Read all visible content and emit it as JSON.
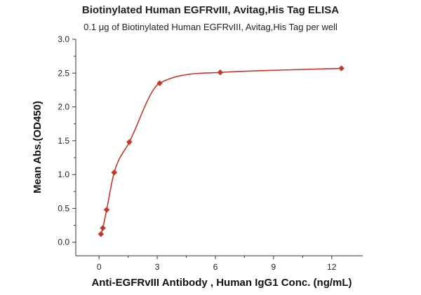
{
  "chart_data": {
    "type": "scatter",
    "title": "Biotinylated Human EGFRvIII, Avitag,His Tag ELISA",
    "subtitle": "0.1 μg of Biotinylated Human EGFRvIII, Avitag,His Tag per well",
    "xlabel": "Anti-EGFRvIII Antibody , Human IgG1 Conc. (ng/mL)",
    "ylabel": "Mean Abs.(OD450)",
    "xlim": [
      -1.2,
      13.6
    ],
    "ylim": [
      -0.2,
      3.0
    ],
    "xticks": [
      0,
      3,
      6,
      9,
      12
    ],
    "xtick_labels": [
      "0",
      "3",
      "6",
      "9",
      "12"
    ],
    "yticks": [
      0.0,
      0.5,
      1.0,
      1.5,
      2.0,
      2.5,
      3.0
    ],
    "ytick_labels": [
      "0.0",
      "0.5",
      "1.0",
      "1.5",
      "2.0",
      "2.5",
      "3.0"
    ],
    "grid": false,
    "fit_curve": true,
    "color": "#c0392b",
    "series": [
      {
        "x": [
          0.098,
          0.195,
          0.391,
          0.781,
          1.563,
          3.125,
          6.25,
          12.5
        ],
        "y": [
          0.12,
          0.21,
          0.48,
          1.03,
          1.48,
          2.35,
          2.51,
          2.57
        ]
      }
    ]
  }
}
